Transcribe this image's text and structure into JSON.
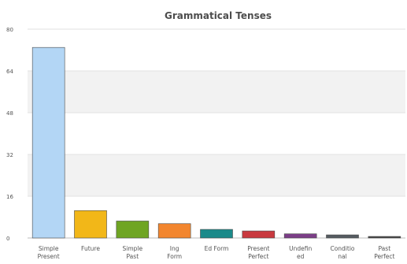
{
  "chart_data": {
    "type": "bar",
    "title": "Grammatical Tenses",
    "xlabel": "",
    "ylabel": "",
    "ylim": [
      0,
      80
    ],
    "yticks": [
      "0",
      "16",
      "32",
      "48",
      "64",
      "80"
    ],
    "grid": "alternating horizontal bands",
    "legend": "none",
    "categories": [
      [
        "Simple",
        "Present"
      ],
      [
        "Future"
      ],
      [
        "Simple",
        "Past"
      ],
      [
        "Ing",
        "Form"
      ],
      [
        "Ed Form"
      ],
      [
        "Present",
        "Perfect"
      ],
      [
        "Undefin",
        "ed"
      ],
      [
        "Conditio",
        "nal"
      ],
      [
        "Past",
        "Perfect"
      ]
    ],
    "values": [
      73,
      10.5,
      6.5,
      5.5,
      3.3,
      2.7,
      1.6,
      1.2,
      0.6
    ],
    "colors": [
      "#b3d6f5",
      "#f2b718",
      "#6fa523",
      "#f2862f",
      "#1a8a8a",
      "#c9393f",
      "#7b3e87",
      "#555b61",
      "#444444"
    ]
  }
}
